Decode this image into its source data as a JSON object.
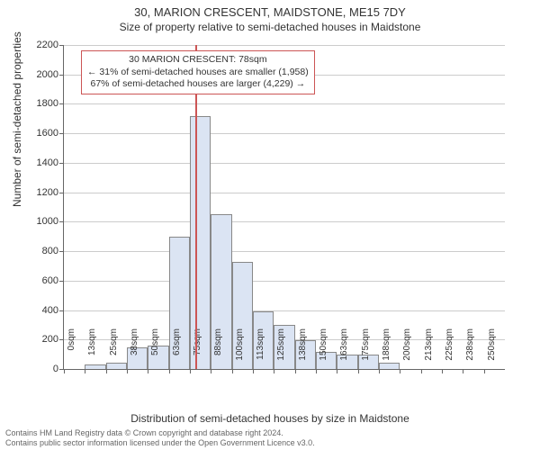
{
  "title": "30, MARION CRESCENT, MAIDSTONE, ME15 7DY",
  "subtitle": "Size of property relative to semi-detached houses in Maidstone",
  "ylabel": "Number of semi-detached properties",
  "xlabel": "Distribution of semi-detached houses by size in Maidstone",
  "chart": {
    "type": "histogram",
    "ylim": [
      0,
      2200
    ],
    "ytick_step": 200,
    "x_start": 0,
    "x_step": 12.5,
    "x_unit": "sqm",
    "n_bins": 21,
    "bar_fill": "#dbe4f3",
    "bar_stroke": "#888888",
    "grid_color": "#cccccc",
    "axis_color": "#666666",
    "background": "#ffffff",
    "values": [
      0,
      30,
      40,
      145,
      160,
      900,
      1720,
      1050,
      730,
      390,
      300,
      195,
      115,
      100,
      95,
      40,
      0,
      0,
      0,
      0,
      0
    ],
    "x_labels": [
      "0sqm",
      "13sqm",
      "25sqm",
      "38sqm",
      "50sqm",
      "63sqm",
      "75sqm",
      "88sqm",
      "100sqm",
      "113sqm",
      "125sqm",
      "138sqm",
      "150sqm",
      "163sqm",
      "175sqm",
      "188sqm",
      "200sqm",
      "213sqm",
      "225sqm",
      "238sqm",
      "250sqm"
    ],
    "marker_value_sqm": 78,
    "marker_color": "#cc5555"
  },
  "annotation": {
    "line1": "30 MARION CRESCENT: 78sqm",
    "line2": "← 31% of semi-detached houses are smaller (1,958)",
    "line3": "67% of semi-detached houses are larger (4,229) →",
    "border_color": "#cc5555"
  },
  "footer": {
    "line1": "Contains HM Land Registry data © Crown copyright and database right 2024.",
    "line2": "Contains public sector information licensed under the Open Government Licence v3.0."
  }
}
